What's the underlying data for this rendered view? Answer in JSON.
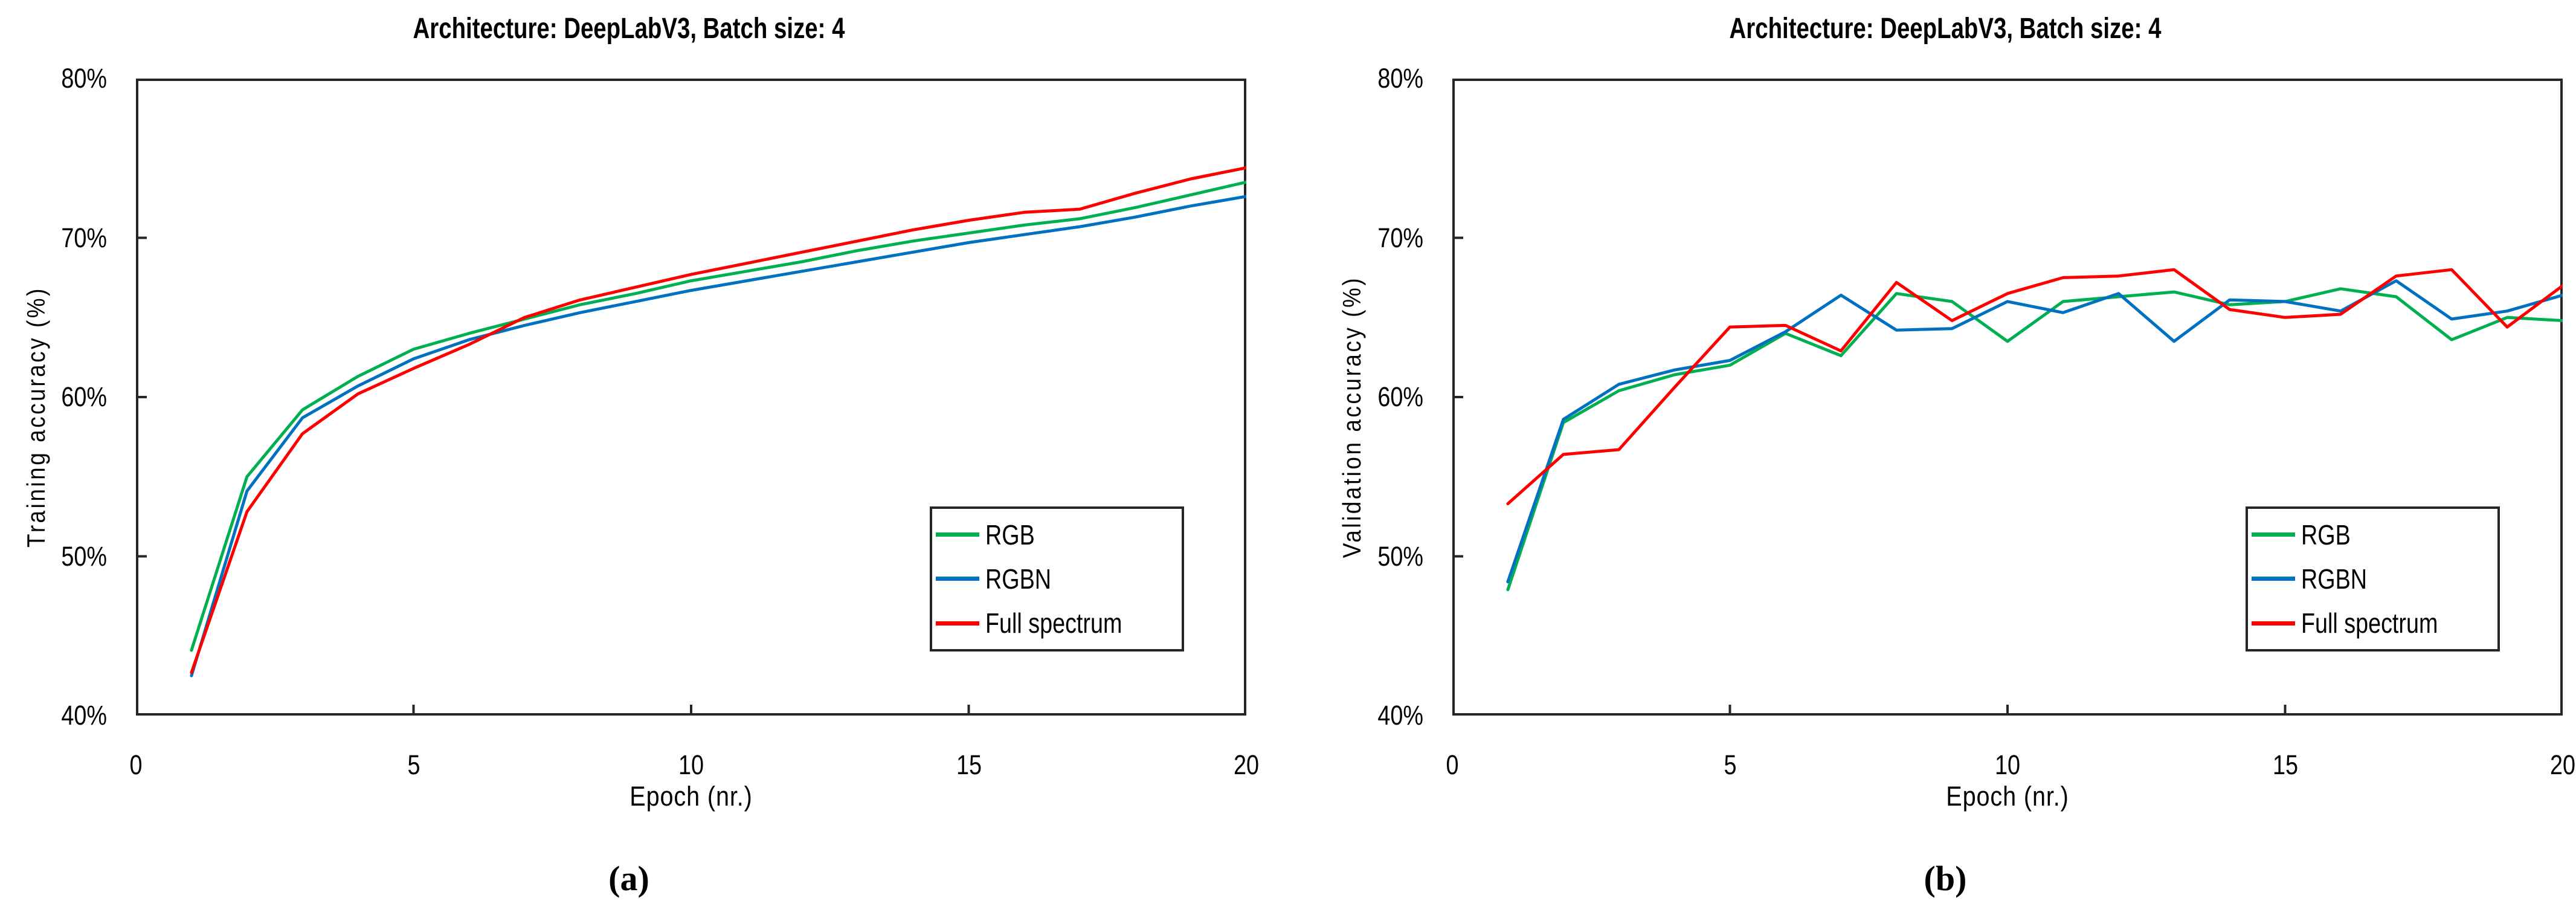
{
  "page": {
    "background": "#ffffff",
    "border_color": "#262626"
  },
  "charts": [
    {
      "id": "a",
      "title": "Architecture: DeepLabV3, Batch size: 4",
      "y_label": "Training accuracy (%)",
      "x_label": "Epoch (nr.)",
      "caption": "(a)",
      "y_ticks": [
        "80%",
        "70%",
        "60%",
        "50%",
        "40%"
      ],
      "x_ticks": [
        "0",
        "5",
        "10",
        "15",
        "20"
      ]
    },
    {
      "id": "b",
      "title": "Architecture: DeepLabV3, Batch size: 4",
      "y_label": "Validation accuracy (%)",
      "x_label": "Epoch (nr.)",
      "caption": "(b)",
      "y_ticks": [
        "80%",
        "70%",
        "60%",
        "50%",
        "40%"
      ],
      "x_ticks": [
        "0",
        "5",
        "10",
        "15",
        "20"
      ]
    }
  ],
  "chart_data": [
    {
      "type": "line",
      "title": "Architecture: DeepLabV3, Batch size: 4",
      "xlabel": "Epoch (nr.)",
      "ylabel": "Training accuracy (%)",
      "xlim": [
        0,
        20
      ],
      "ylim": [
        40,
        80
      ],
      "x_tick_values": [
        0,
        5,
        10,
        15,
        20
      ],
      "y_tick_values": [
        80,
        70,
        60,
        50,
        40
      ],
      "grid": false,
      "legend_position": "lower right",
      "x": [
        1,
        2,
        3,
        4,
        5,
        6,
        7,
        8,
        9,
        10,
        11,
        12,
        13,
        14,
        15,
        16,
        17,
        18,
        19,
        20
      ],
      "series": [
        {
          "name": "RGB",
          "color": "#00B050",
          "values": [
            44.1,
            55.0,
            59.2,
            61.3,
            63.0,
            64.0,
            64.9,
            65.8,
            66.5,
            67.3,
            67.9,
            68.5,
            69.2,
            69.8,
            70.3,
            70.8,
            71.2,
            71.9,
            72.7,
            73.5
          ]
        },
        {
          "name": "RGBN",
          "color": "#0070C0",
          "values": [
            42.5,
            54.1,
            58.7,
            60.7,
            62.4,
            63.6,
            64.5,
            65.3,
            66.0,
            66.7,
            67.3,
            67.9,
            68.5,
            69.1,
            69.7,
            70.2,
            70.7,
            71.3,
            72.0,
            72.6
          ]
        },
        {
          "name": "Full spectrum",
          "color": "#FF0000",
          "values": [
            42.7,
            52.8,
            57.7,
            60.2,
            61.8,
            63.3,
            65.0,
            66.1,
            66.9,
            67.7,
            68.4,
            69.1,
            69.8,
            70.5,
            71.1,
            71.6,
            71.8,
            72.8,
            73.7,
            74.4
          ]
        }
      ]
    },
    {
      "type": "line",
      "title": "Architecture: DeepLabV3, Batch size: 4",
      "xlabel": "Epoch (nr.)",
      "ylabel": "Validation accuracy (%)",
      "xlim": [
        0,
        20
      ],
      "ylim": [
        40,
        80
      ],
      "x_tick_values": [
        0,
        5,
        10,
        15,
        20
      ],
      "y_tick_values": [
        80,
        70,
        60,
        50,
        40
      ],
      "grid": false,
      "legend_position": "lower right",
      "x": [
        1,
        2,
        3,
        4,
        5,
        6,
        7,
        8,
        9,
        10,
        11,
        12,
        13,
        14,
        15,
        16,
        17,
        18,
        19,
        20
      ],
      "series": [
        {
          "name": "RGB",
          "color": "#00B050",
          "values": [
            47.9,
            58.4,
            60.4,
            61.4,
            62.0,
            64.0,
            62.6,
            66.5,
            66.0,
            63.5,
            66.0,
            66.3,
            66.6,
            65.8,
            66.0,
            66.8,
            66.3,
            63.6,
            65.0,
            64.8
          ]
        },
        {
          "name": "RGBN",
          "color": "#0070C0",
          "values": [
            48.4,
            58.6,
            60.8,
            61.7,
            62.3,
            64.1,
            66.4,
            64.2,
            64.3,
            66.0,
            65.3,
            66.5,
            63.5,
            66.1,
            66.0,
            65.4,
            67.3,
            64.9,
            65.4,
            66.4
          ]
        },
        {
          "name": "Full spectrum",
          "color": "#FF0000",
          "values": [
            53.3,
            56.4,
            56.7,
            60.6,
            64.4,
            64.5,
            62.9,
            67.2,
            64.8,
            66.5,
            67.5,
            67.6,
            68.0,
            65.5,
            65.0,
            65.2,
            67.6,
            68.0,
            64.4,
            67.0
          ]
        }
      ]
    }
  ]
}
